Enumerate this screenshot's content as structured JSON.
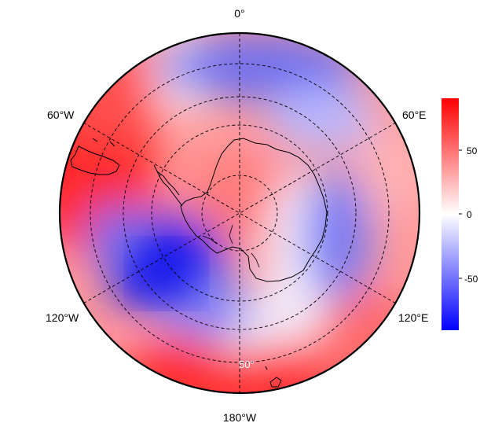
{
  "map": {
    "projection": "south-polar-stereographic",
    "colormap": [
      "#0000ff",
      "#ffffff",
      "#ff0000"
    ],
    "longitude_labels": {
      "top": "0°",
      "upper_left": "60°W",
      "upper_right": "60°E",
      "lower_left": "120°W",
      "lower_right": "120°E",
      "bottom": "180°W"
    },
    "latitude_label": "50°",
    "colorbar": {
      "range": [
        -90,
        90
      ],
      "ticks": [
        "50",
        "0",
        "-50"
      ]
    }
  }
}
